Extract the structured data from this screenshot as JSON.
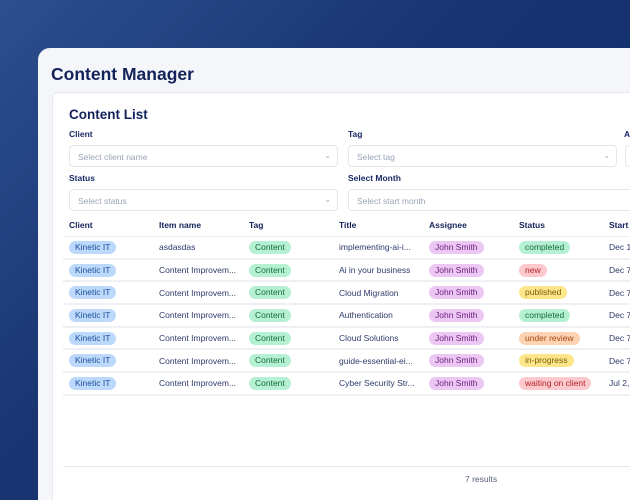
{
  "header": {
    "title": "Content Manager"
  },
  "panel": {
    "title": "Content List"
  },
  "filters": {
    "client": {
      "label": "Client",
      "placeholder": "Select client name"
    },
    "tag": {
      "label": "Tag",
      "placeholder": "Select tag"
    },
    "assignee": {
      "label": "A"
    },
    "status": {
      "label": "Status",
      "placeholder": "Select status"
    },
    "month": {
      "label": "Select Month",
      "placeholder": "Select start month"
    }
  },
  "table": {
    "columns": [
      "Client",
      "Item name",
      "Tag",
      "Title",
      "Assignee",
      "Status",
      "Start"
    ],
    "rows": [
      {
        "client": "Kinetic IT",
        "item": "asdasdas",
        "tag": "Content",
        "title": "implementing-ai-i...",
        "assignee": "John Smith",
        "status": "completed",
        "start": "Dec 1"
      },
      {
        "client": "Kinetic IT",
        "item": "Content Improvem...",
        "tag": "Content",
        "title": "Ai in your business",
        "assignee": "John Smith",
        "status": "new",
        "start": "Dec 7"
      },
      {
        "client": "Kinetic IT",
        "item": "Content Improvem...",
        "tag": "Content",
        "title": "Cloud Migration",
        "assignee": "John Smith",
        "status": "published",
        "start": "Dec 7"
      },
      {
        "client": "Kinetic IT",
        "item": "Content Improvem...",
        "tag": "Content",
        "title": "Authentication",
        "assignee": "John Smith",
        "status": "completed",
        "start": "Dec 7"
      },
      {
        "client": "Kinetic IT",
        "item": "Content Improvem...",
        "tag": "Content",
        "title": "Cloud Solutions",
        "assignee": "John Smith",
        "status": "under review",
        "start": "Dec 7"
      },
      {
        "client": "Kinetic IT",
        "item": "Content Improvem...",
        "tag": "Content",
        "title": "guide-essential-ei...",
        "assignee": "John Smith",
        "status": "in-progress",
        "start": "Dec 7"
      },
      {
        "client": "Kinetic IT",
        "item": "Content Improvem...",
        "tag": "Content",
        "title": "Cyber Security Str...",
        "assignee": "John Smith",
        "status": "waiting on client",
        "start": "Jul 2,"
      }
    ]
  },
  "status_colors": {
    "completed": [
      "#b6f0d2",
      "#116b3f"
    ],
    "new": [
      "#fcc9cc",
      "#b4232c"
    ],
    "published": [
      "#fde68a",
      "#7a5a05"
    ],
    "under review": [
      "#fdd3b4",
      "#a2470f"
    ],
    "in-progress": [
      "#fde68a",
      "#7a5a05"
    ],
    "waiting on client": [
      "#fcc9cc",
      "#b4232c"
    ]
  },
  "footer": {
    "results": "7 results"
  }
}
